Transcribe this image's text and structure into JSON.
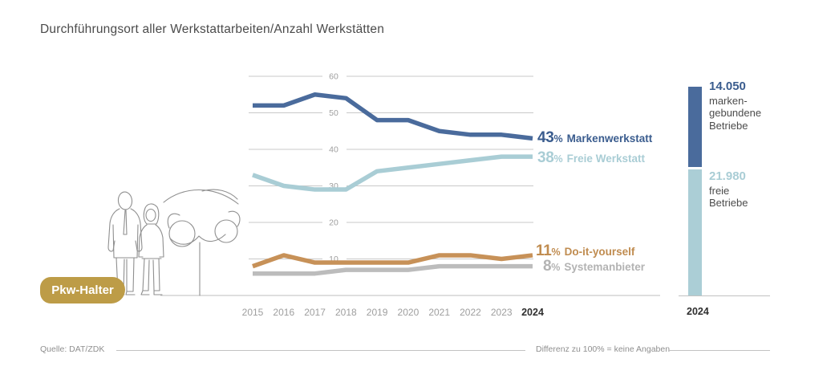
{
  "title": "Durchführungsort aller Werkstattarbeiten/Anzahl Werkstätten",
  "badge": {
    "label": "Pkw-Halter",
    "color": "#bd9c47"
  },
  "chart_data": [
    {
      "type": "line",
      "title": "Durchführungsort aller Werkstattarbeiten",
      "x": [
        "2015",
        "2016",
        "2017",
        "2018",
        "2019",
        "2020",
        "2021",
        "2022",
        "2023",
        "2024"
      ],
      "ylim": [
        0,
        60
      ],
      "yticks": [
        10,
        20,
        30,
        40,
        50,
        60
      ],
      "grid": true,
      "legend_position": "right of line ends",
      "series": [
        {
          "name": "Markenwerkstatt",
          "color": "#4a6b9c",
          "label_color": "#3a5c8e",
          "values": [
            52,
            52,
            55,
            54,
            48,
            48,
            45,
            44,
            44,
            43
          ],
          "end_pct": "43",
          "unit": "%",
          "end_label": "Markenwerkstatt"
        },
        {
          "name": "Freie Werkstatt",
          "color": "#a9cdd5",
          "label_color": "#a9cdd5",
          "values": [
            33,
            30,
            29,
            29,
            34,
            35,
            36,
            37,
            38,
            38
          ],
          "end_pct": "38",
          "unit": "%",
          "end_label": "Freie Werkstatt"
        },
        {
          "name": "Do-it-yourself",
          "color": "#c79158",
          "label_color": "#c08c50",
          "values": [
            8,
            11,
            9,
            9,
            9,
            9,
            11,
            11,
            10,
            11
          ],
          "end_pct": "11",
          "unit": "%",
          "end_label": "Do-it-yourself"
        },
        {
          "name": "Systemanbieter",
          "color": "#bcbcbc",
          "label_color": "#b3b3b3",
          "values": [
            6,
            6,
            6,
            7,
            7,
            7,
            8,
            8,
            8,
            8
          ],
          "end_pct": "8",
          "unit": "%",
          "end_label": "Systemanbieter"
        }
      ]
    },
    {
      "type": "bar",
      "title": "Anzahl Werkstätten 2024",
      "x_label": "2024",
      "segments": [
        {
          "label": "14.050",
          "value": 14050,
          "description": "marken-\ngebundene\nBetriebe",
          "color": "#4a6b9c",
          "label_color": "#3a5c8e"
        },
        {
          "label": "21.980",
          "value": 21980,
          "description": "freie\nBetriebe",
          "color": "#abced6",
          "label_color": "#a9cdd5"
        }
      ]
    }
  ],
  "footer": {
    "source": "Quelle: DAT/ZDK",
    "note": "Differenz zu 100% = keine Angaben"
  }
}
